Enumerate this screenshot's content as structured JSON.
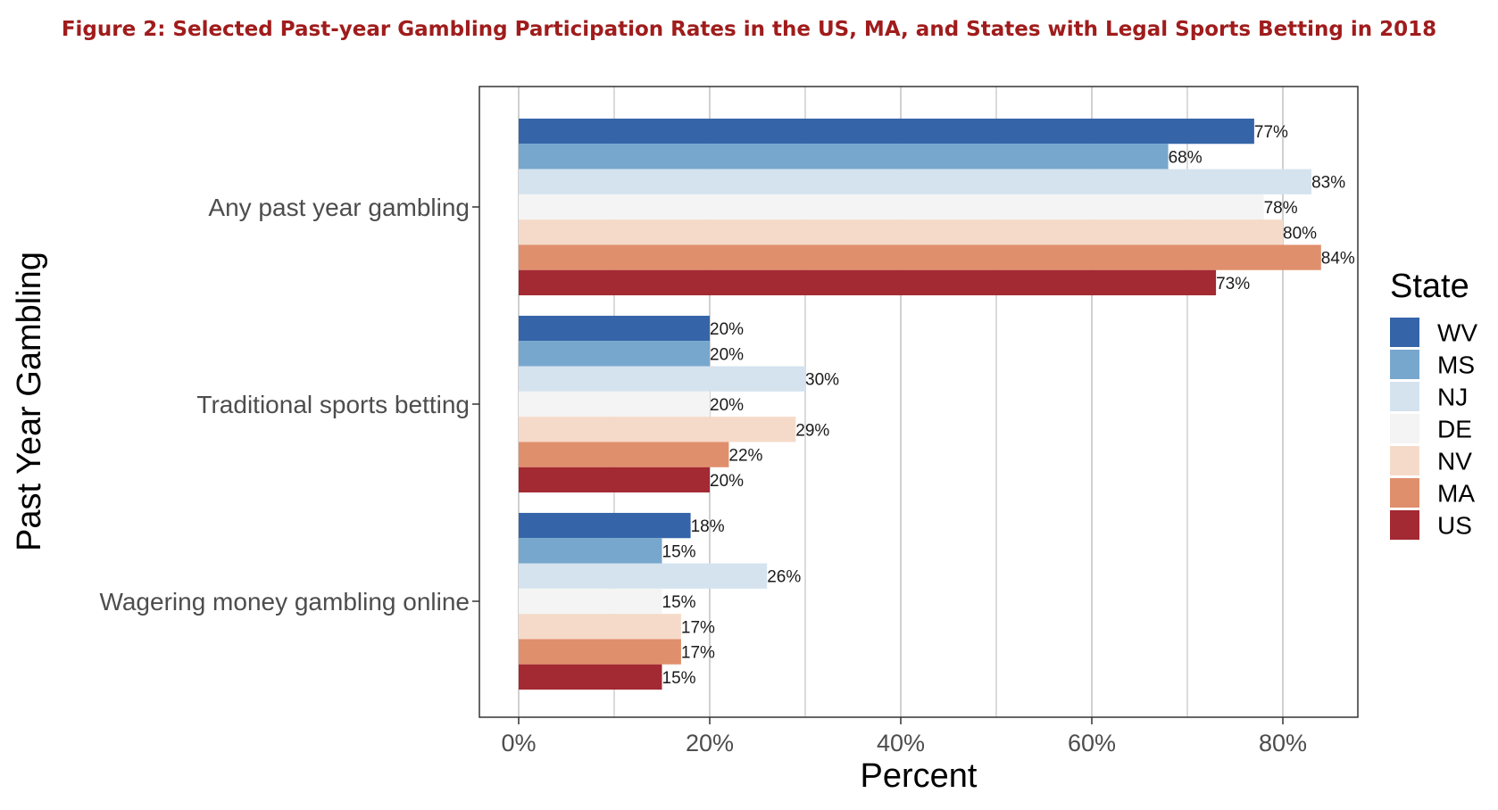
{
  "figure_title": "Figure 2: Selected Past-year Gambling Participation Rates in the US, MA, and States with Legal Sports Betting in 2018",
  "chart_data": {
    "type": "bar",
    "orientation": "horizontal",
    "xlabel": "Percent",
    "ylabel": "Past Year Gambling",
    "xlim": [
      0,
      88
    ],
    "xticks": [
      0,
      20,
      40,
      60,
      80
    ],
    "xtick_labels": [
      "0%",
      "20%",
      "40%",
      "60%",
      "80%"
    ],
    "grid": true,
    "legend": {
      "title": "State",
      "position": "right"
    },
    "categories": [
      "Any past year gambling",
      "Traditional sports betting",
      "Wagering money gambling online"
    ],
    "series": [
      {
        "name": "WV",
        "color": "#3565a8",
        "values": [
          77,
          20,
          18
        ],
        "labels": [
          "77%",
          "20%",
          "18%"
        ]
      },
      {
        "name": "MS",
        "color": "#77a7cd",
        "values": [
          68,
          20,
          15
        ],
        "labels": [
          "68%",
          "20%",
          "15%"
        ]
      },
      {
        "name": "NJ",
        "color": "#d5e3ef",
        "values": [
          83,
          30,
          26
        ],
        "labels": [
          "83%",
          "30%",
          "26%"
        ]
      },
      {
        "name": "DE",
        "color": "#f4f4f4",
        "values": [
          78,
          20,
          15
        ],
        "labels": [
          "78%",
          "20%",
          "15%"
        ]
      },
      {
        "name": "NV",
        "color": "#f6dac9",
        "values": [
          80,
          29,
          17
        ],
        "labels": [
          "80%",
          "29%",
          "17%"
        ]
      },
      {
        "name": "MA",
        "color": "#e08f6c",
        "values": [
          84,
          22,
          17
        ],
        "labels": [
          "84%",
          "22%",
          "17%"
        ]
      },
      {
        "name": "US",
        "color": "#a32932",
        "values": [
          73,
          20,
          15
        ],
        "labels": [
          "73%",
          "20%",
          "15%"
        ]
      }
    ]
  }
}
